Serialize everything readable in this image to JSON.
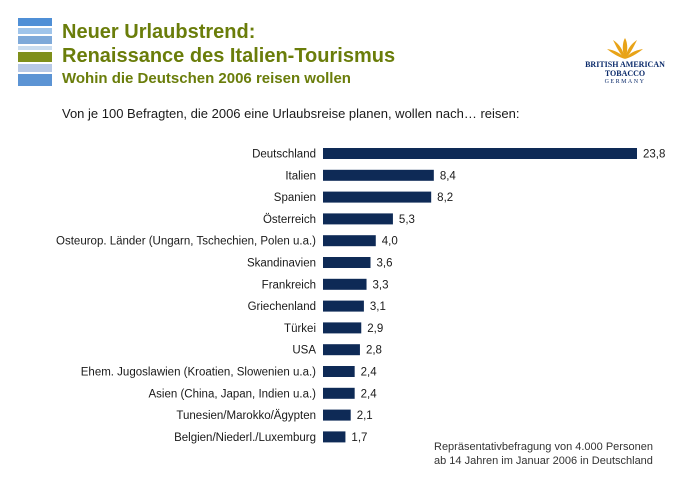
{
  "header": {
    "title_line1": "Neuer Urlaubstrend:",
    "title_line2": "Renaissance des Italien-Tourismus",
    "subtitle": "Wohin die Deutschen 2006 reisen wollen",
    "intro": "Von je 100 Befragten, die 2006 eine Urlaubsreise planen, wollen nach… reisen:"
  },
  "logo": {
    "line1": "BRITISH AMERICAN",
    "line2": "TOBACCO",
    "line3": "GERMANY",
    "icon": "leaf-fan-icon"
  },
  "note": {
    "line1": "Repräsentativbefragung von 4.000 Personen",
    "line2": "ab 14 Jahren im Januar 2006 in Deutschland"
  },
  "colors": {
    "bar": "#0e2a56",
    "title": "#6a7d0a",
    "logo_gold": "#e8a317",
    "stripes": [
      "#4f8fd6",
      "#9fc4ea",
      "#7ea9d9",
      "#c9dcef",
      "#7f8f1a",
      "#b8c9e6",
      "#5c94d4"
    ]
  },
  "chart_data": {
    "type": "bar",
    "orientation": "horizontal",
    "title": "",
    "xlabel": "",
    "ylabel": "",
    "grid": false,
    "categories": [
      "Deutschland",
      "Italien",
      "Spanien",
      "Österreich",
      "Osteurop. Länder (Ungarn, Tschechien, Polen u.a.)",
      "Skandinavien",
      "Frankreich",
      "Griechenland",
      "Türkei",
      "USA",
      "Ehem. Jugoslawien (Kroatien, Slowenien u.a.)",
      "Asien (China, Japan, Indien u.a.)",
      "Tunesien/Marokko/Ägypten",
      "Belgien/Niederl./Luxemburg"
    ],
    "values": [
      23.8,
      8.4,
      8.2,
      5.3,
      4.0,
      3.6,
      3.3,
      3.1,
      2.9,
      2.8,
      2.4,
      2.4,
      2.1,
      1.7
    ],
    "value_labels": [
      "23,8",
      "8,4",
      "8,2",
      "5,3",
      "4,0",
      "3,6",
      "3,3",
      "3,1",
      "2,9",
      "2,8",
      "2,4",
      "2,4",
      "2,1",
      "1,7"
    ],
    "xlim": [
      0,
      23.8
    ]
  }
}
